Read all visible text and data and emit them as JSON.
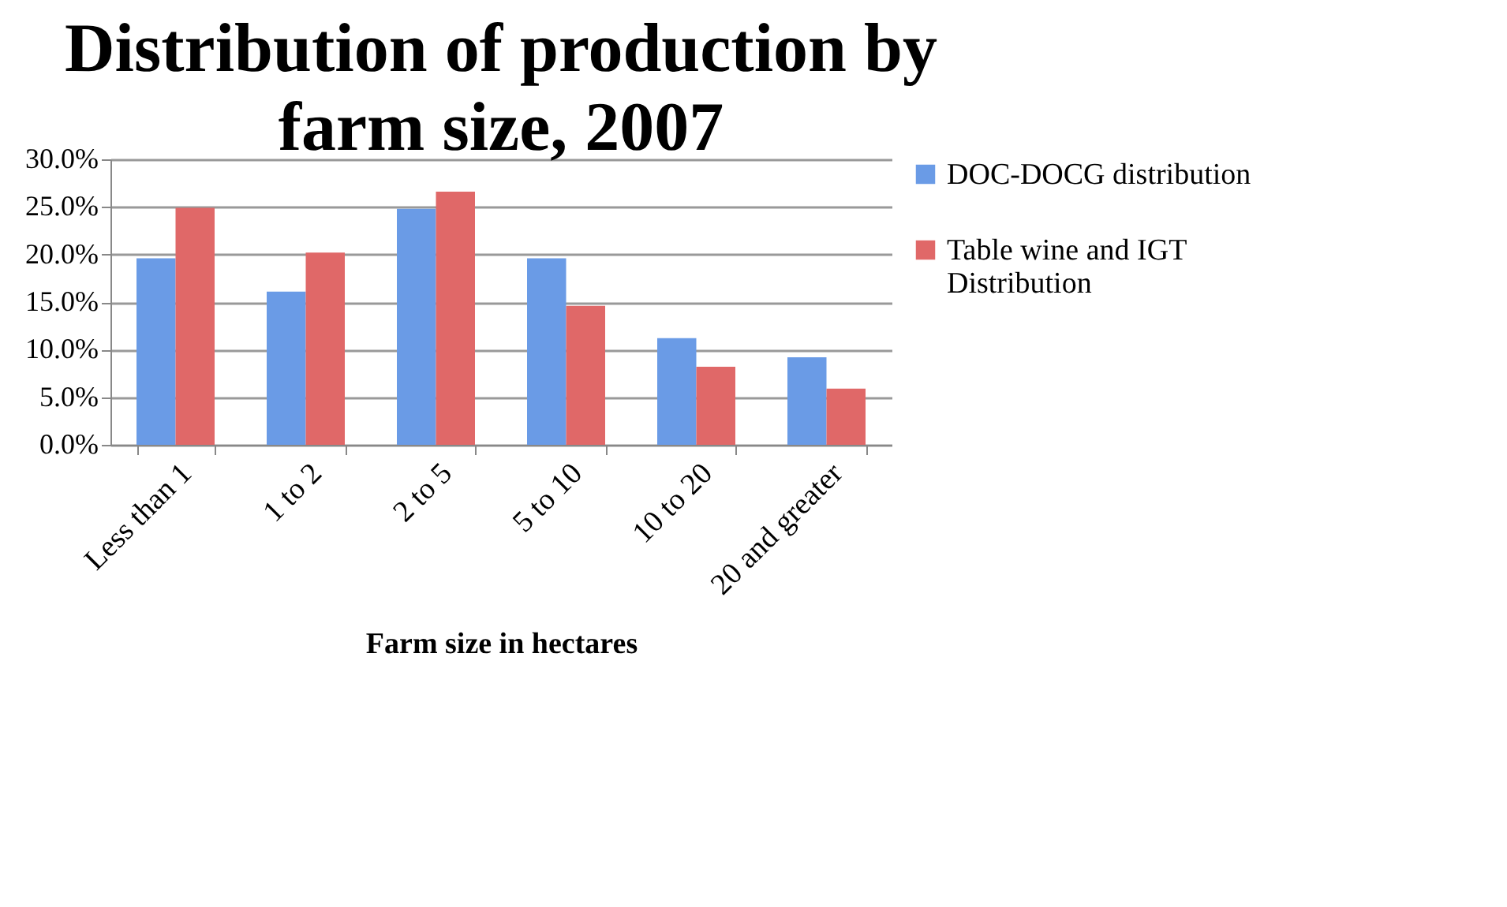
{
  "chart_data": {
    "type": "bar",
    "title": [
      "Distribution of production by",
      "farm size, 2007"
    ],
    "xlabel": "Farm size in hectares",
    "categories": [
      "Less than 1",
      "1 to 2",
      "2 to 5",
      "5 to 10",
      "10 to 20",
      "20 and greater"
    ],
    "series": [
      {
        "name": "DOC-DOCG distribution",
        "color": "#6a9be6",
        "values": [
          19.6,
          16.1,
          24.8,
          19.6,
          11.2,
          9.2
        ]
      },
      {
        "name": "Table wine and IGT Distribution",
        "color": "#e06868",
        "values": [
          24.9,
          20.2,
          26.6,
          14.6,
          8.2,
          5.9
        ]
      }
    ],
    "ylim": [
      0,
      30
    ],
    "yticks": [
      {
        "value": 0,
        "label": "0.0%"
      },
      {
        "value": 5,
        "label": "5.0%"
      },
      {
        "value": 10,
        "label": "10.0%"
      },
      {
        "value": 15,
        "label": "15.0%"
      },
      {
        "value": 20,
        "label": "20.0%"
      },
      {
        "value": 25,
        "label": "25.0%"
      },
      {
        "value": 30,
        "label": "30.0%"
      }
    ],
    "grid": "y",
    "legend": "right"
  }
}
